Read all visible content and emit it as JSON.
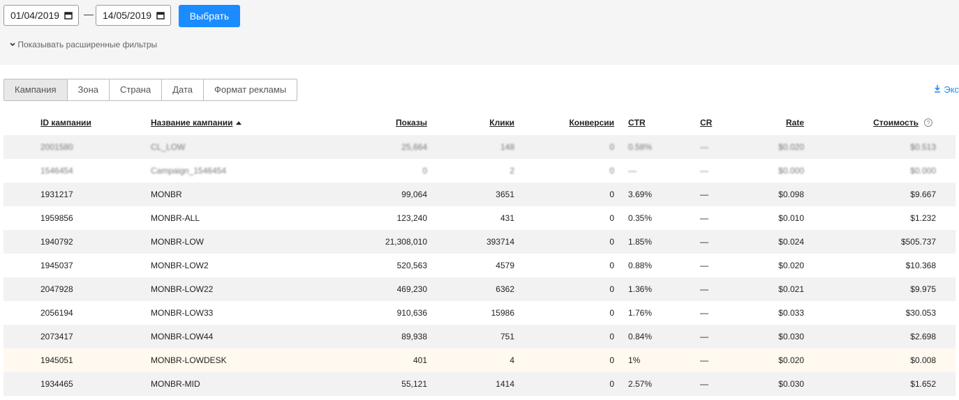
{
  "filters": {
    "date_from": "01/04/2019",
    "date_separator": "—",
    "date_to": "14/05/2019",
    "submit": "Выбрать",
    "advanced": "Показывать расширенные фильтры"
  },
  "tabs": [
    "Кампания",
    "Зона",
    "Страна",
    "Дата",
    "Формат рекламы"
  ],
  "export": "Экс",
  "table": {
    "columns": [
      "ID кампании",
      "Название кампании",
      "Показы",
      "Клики",
      "Конверсии",
      "CTR",
      "CR",
      "Rate",
      "Стоимость"
    ],
    "rows": [
      [
        "2001580",
        "CL_LOW",
        "25,664",
        "148",
        "0",
        "0.58%",
        "—",
        "$0.020",
        "$0.513"
      ],
      [
        "1546454",
        "Campaign_1546454",
        "0",
        "2",
        "0",
        "—",
        "—",
        "$0.000",
        "$0.000"
      ],
      [
        "1931217",
        "MONBR",
        "99,064",
        "3651",
        "0",
        "3.69%",
        "—",
        "$0.098",
        "$9.667"
      ],
      [
        "1959856",
        "MONBR-ALL",
        "123,240",
        "431",
        "0",
        "0.35%",
        "—",
        "$0.010",
        "$1.232"
      ],
      [
        "1940792",
        "MONBR-LOW",
        "21,308,010",
        "393714",
        "0",
        "1.85%",
        "—",
        "$0.024",
        "$505.737"
      ],
      [
        "1945037",
        "MONBR-LOW2",
        "520,563",
        "4579",
        "0",
        "0.88%",
        "—",
        "$0.020",
        "$10.368"
      ],
      [
        "2047928",
        "MONBR-LOW22",
        "469,230",
        "6362",
        "0",
        "1.36%",
        "—",
        "$0.021",
        "$9.975"
      ],
      [
        "2056194",
        "MONBR-LOW33",
        "910,636",
        "15986",
        "0",
        "1.76%",
        "—",
        "$0.033",
        "$30.053"
      ],
      [
        "2073417",
        "MONBR-LOW44",
        "89,938",
        "751",
        "0",
        "0.84%",
        "—",
        "$0.030",
        "$2.698"
      ],
      [
        "1945051",
        "MONBR-LOWDESK",
        "401",
        "4",
        "0",
        "1%",
        "—",
        "$0.020",
        "$0.008"
      ],
      [
        "1934465",
        "MONBR-MID",
        "55,121",
        "1414",
        "0",
        "2.57%",
        "—",
        "$0.030",
        "$1.652"
      ]
    ]
  }
}
